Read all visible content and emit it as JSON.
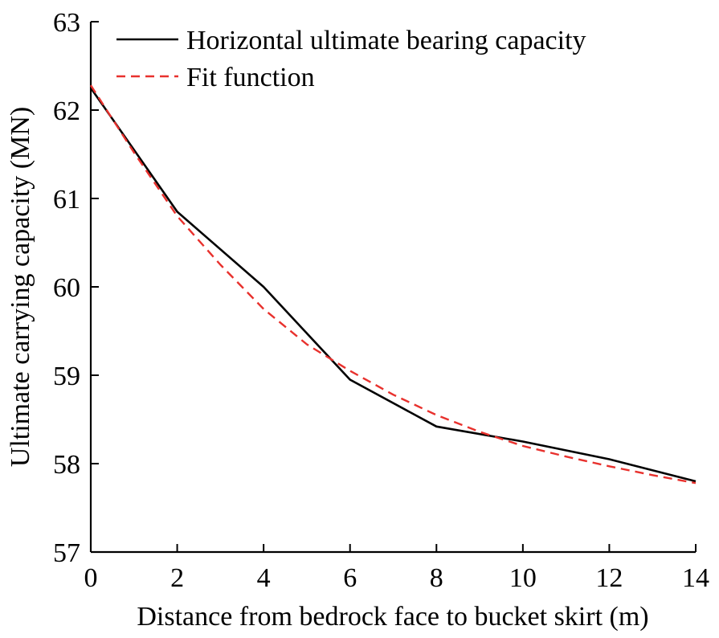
{
  "chart_data": {
    "type": "line",
    "title": "",
    "xlabel": "Distance from bedrock face to bucket skirt (m)",
    "ylabel": "Ultimate carrying capacity (MN)",
    "xlim": [
      0,
      14
    ],
    "ylim": [
      57,
      63
    ],
    "xticks": [
      0,
      2,
      4,
      6,
      8,
      10,
      12,
      14
    ],
    "yticks": [
      57,
      58,
      59,
      60,
      61,
      62,
      63
    ],
    "grid": false,
    "legend_position": "top-left",
    "series": [
      {
        "name": "Horizontal ultimate bearing capacity",
        "style": "solid",
        "color": "#000000",
        "x": [
          0,
          2,
          4,
          6,
          8,
          10,
          12,
          14
        ],
        "y": [
          62.25,
          60.85,
          60.0,
          58.95,
          58.42,
          58.25,
          58.05,
          57.8
        ]
      },
      {
        "name": "Fit function",
        "style": "dashed",
        "color": "#e8312d",
        "x": [
          0,
          1,
          2,
          3,
          4,
          5,
          6,
          7,
          8,
          9,
          10,
          11,
          12,
          13,
          14
        ],
        "y": [
          62.28,
          61.52,
          60.8,
          60.25,
          59.75,
          59.35,
          59.05,
          58.78,
          58.55,
          58.36,
          58.2,
          58.08,
          57.97,
          57.87,
          57.78
        ]
      }
    ]
  }
}
